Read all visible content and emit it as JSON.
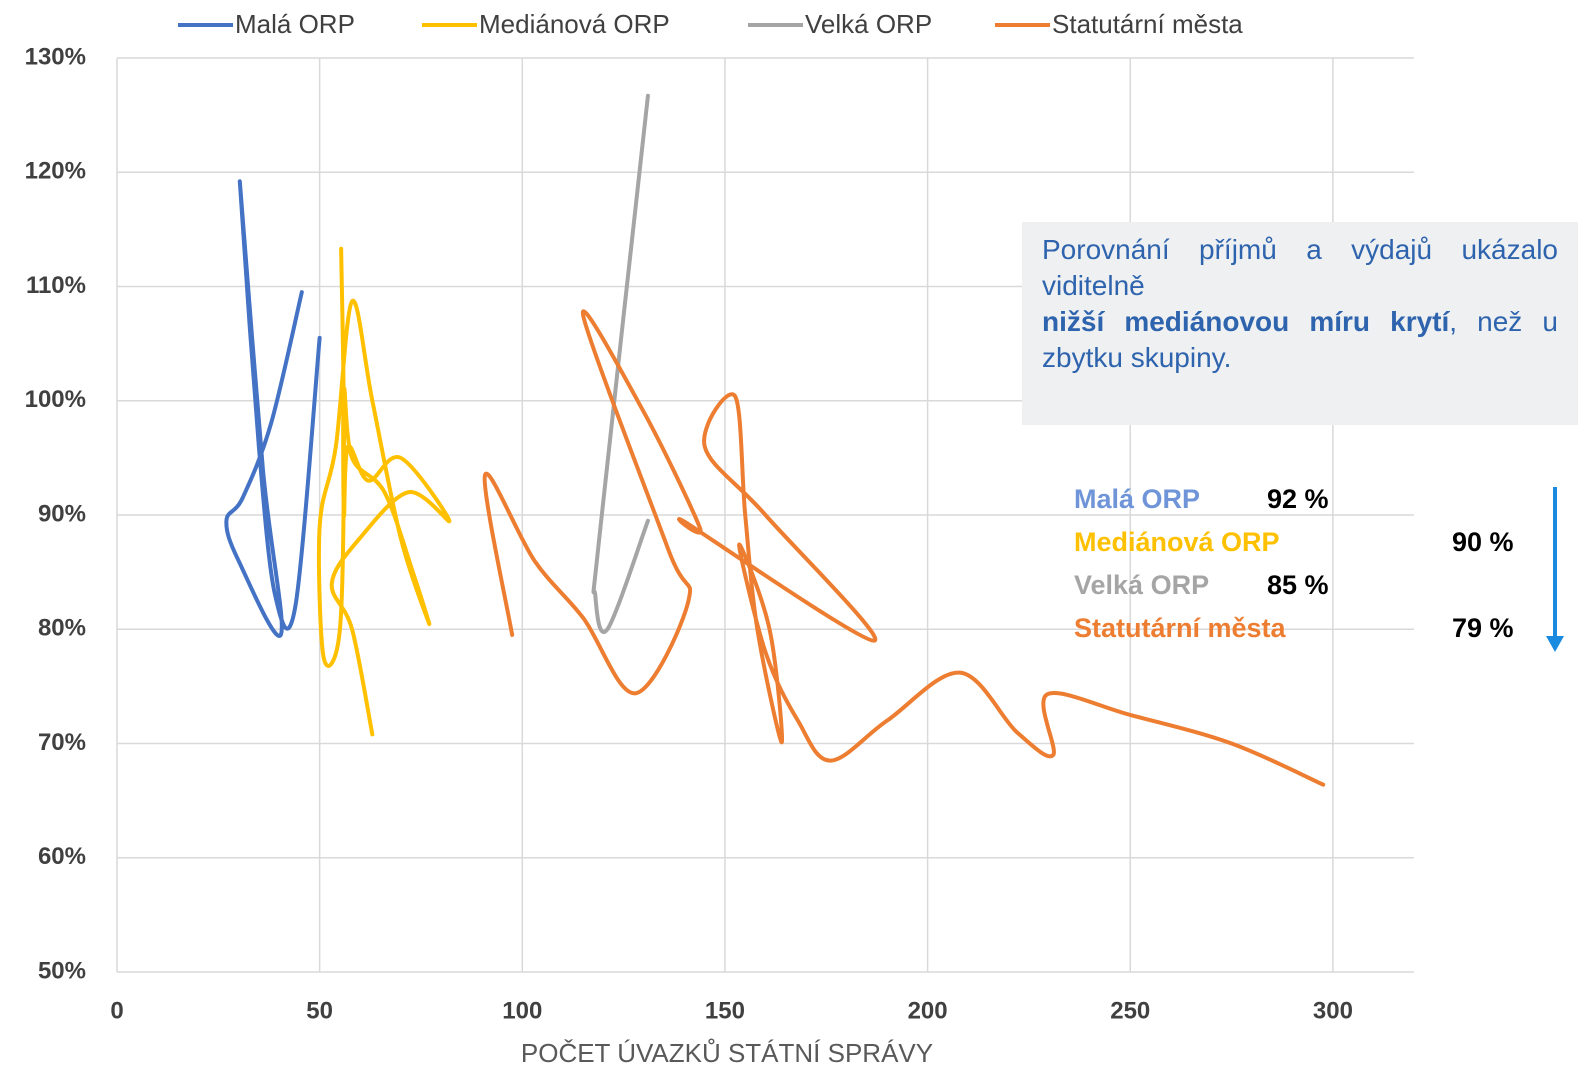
{
  "chart_data": {
    "type": "line",
    "x_label": "POČET ÚVAZKŮ STÁTNÍ SPRÁVY",
    "xlim": [
      0,
      320
    ],
    "xticks": [
      0,
      50,
      100,
      150,
      200,
      250,
      300
    ],
    "ylim": [
      50,
      130
    ],
    "yticks": [
      {
        "value": 50,
        "label": "50%"
      },
      {
        "value": 60,
        "label": "60%"
      },
      {
        "value": 70,
        "label": "70%"
      },
      {
        "value": 80,
        "label": "80%"
      },
      {
        "value": 90,
        "label": "90%"
      },
      {
        "value": 100,
        "label": "100%"
      },
      {
        "value": 110,
        "label": "110%"
      },
      {
        "value": 120,
        "label": "120%"
      },
      {
        "value": 130,
        "label": "130%"
      }
    ],
    "grid": true,
    "smooth": true,
    "legend": "top",
    "series": [
      {
        "name": "Malá ORP",
        "color": "#4472c4",
        "x": [
          45.6,
          38,
          31,
          27,
          30,
          40.5,
          36,
          30.3,
          35,
          39,
          44,
          50
        ],
        "values": [
          109.5,
          98,
          91.5,
          89.5,
          86,
          79.6,
          94,
          119.2,
          96,
          83,
          82,
          105.5
        ]
      },
      {
        "name": "Mediánová ORP",
        "color": "#ffc000",
        "x": [
          55.3,
          56,
          55,
          51,
          50,
          54,
          58,
          63,
          70,
          77,
          73,
          66,
          58,
          56,
          56,
          57,
          62,
          70,
          82,
          72,
          60,
          53,
          58,
          63
        ],
        "values": [
          113.3,
          96,
          80,
          77.5,
          89,
          96,
          108.7,
          100,
          88,
          80.5,
          85,
          92,
          95,
          101,
          90,
          96,
          93,
          95,
          89.5,
          92,
          88,
          84,
          80,
          70.8
        ]
      },
      {
        "name": "Velká ORP",
        "color": "#a5a5a5",
        "x": [
          131,
          121,
          118,
          119,
          131
        ],
        "values": [
          89.5,
          80,
          83,
          88,
          126.7
        ]
      },
      {
        "name": "Statutární města",
        "color": "#ed7d31",
        "x": [
          97.5,
          90.8,
          103,
          115,
          128,
          141,
          136,
          115,
          130,
          143.8,
          141,
          186.8,
          160,
          145,
          152.5,
          155,
          158,
          164,
          161,
          153.5,
          160,
          168,
          176,
          190,
          208,
          222,
          231,
          229.5,
          250,
          275,
          297.6
        ],
        "values": [
          79.5,
          93.5,
          86,
          81,
          74.4,
          82.5,
          87,
          107.5,
          99,
          88.9,
          89.2,
          79,
          90,
          96,
          100.4,
          90,
          80,
          70.1,
          80,
          87.4,
          78,
          72,
          68.5,
          72,
          76.2,
          71,
          69,
          74.3,
          72.5,
          70,
          66.4
        ]
      }
    ]
  },
  "note": {
    "line1": "Porovnání příjmů a výdajů ukázalo viditelně",
    "bold": "nižší mediánovou míru krytí",
    "end": ", než u zbytku skupiny."
  },
  "summary": [
    {
      "name": "Malá ORP",
      "color": "#6f94d8",
      "value": "92 %"
    },
    {
      "name": "Mediánová ORP",
      "color": "#ffc000",
      "value": "90 %"
    },
    {
      "name": "Velká ORP",
      "color": "#a5a5a5",
      "value": "85 %"
    },
    {
      "name": "Statutární města",
      "color": "#ed7d31",
      "value": "79 %"
    }
  ]
}
